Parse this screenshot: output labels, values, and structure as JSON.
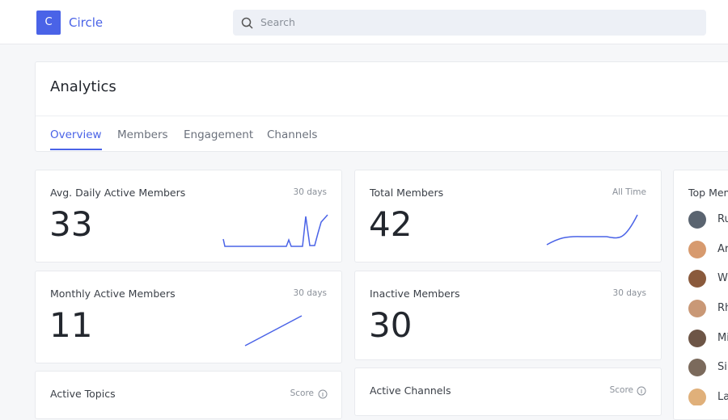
{
  "header": {
    "logo_letter": "C",
    "brand": "Circle",
    "search_placeholder": "Search"
  },
  "page": {
    "title": "Analytics",
    "tabs": [
      "Overview",
      "Members",
      "Engagement",
      "Channels"
    ]
  },
  "cards": [
    {
      "title": "Avg. Daily Active Members",
      "period": "30 days",
      "value": 33
    },
    {
      "title": "Total Members",
      "period": "All Time",
      "value": 42
    },
    {
      "title": "Monthly Active Members",
      "period": "30 days",
      "value": 11
    },
    {
      "title": "Inactive Members",
      "period": "30 days",
      "value": 30
    },
    {
      "title": "Active Topics",
      "period": "Score"
    },
    {
      "title": "Active Channels",
      "period": "Score"
    }
  ],
  "top_members": {
    "title": "Top Mem",
    "names": [
      "Ru",
      "Ar",
      "W",
      "Rh",
      "Mi",
      "Si",
      "La"
    ]
  }
}
